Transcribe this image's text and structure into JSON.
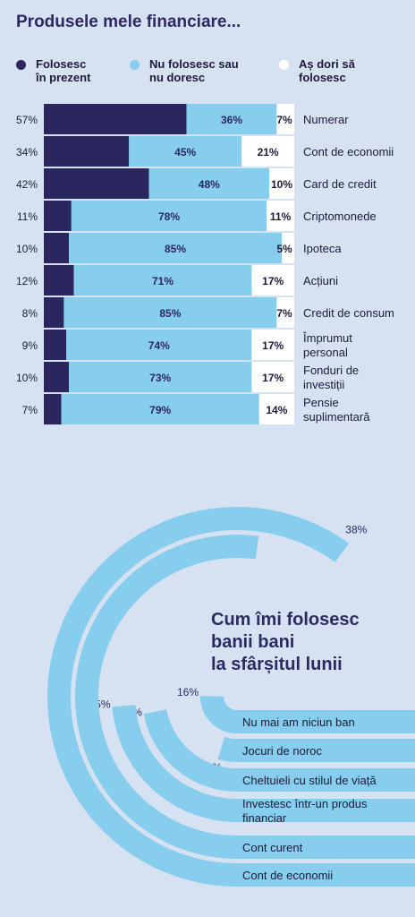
{
  "chart_data": [
    {
      "type": "bar",
      "title": "Produsele mele financiare...",
      "legend": [
        {
          "name": "Folosesc în prezent",
          "color": "#2b275e"
        },
        {
          "name": "Nu folosesc sau nu doresc",
          "color": "#87cded"
        },
        {
          "name": "Aș dori să folosesc",
          "color": "#ffffff"
        }
      ],
      "categories": [
        "Numerar",
        "Cont de economii",
        "Card de credit",
        "Criptomonede",
        "Ipoteca",
        "Acțiuni",
        "Credit de consum",
        "Împrumut personal",
        "Fonduri de investiții",
        "Pensie suplimentară"
      ],
      "series": [
        {
          "name": "Folosesc în prezent",
          "values": [
            57,
            34,
            42,
            11,
            10,
            12,
            8,
            9,
            10,
            7
          ]
        },
        {
          "name": "Nu folosesc sau nu doresc",
          "values": [
            36,
            45,
            48,
            78,
            85,
            71,
            85,
            74,
            73,
            79
          ]
        },
        {
          "name": "Aș dori să folosesc",
          "values": [
            7,
            21,
            10,
            11,
            5,
            17,
            7,
            17,
            17,
            14
          ]
        }
      ],
      "stacked": true,
      "value_suffix": "%"
    },
    {
      "type": "radial-bar",
      "title": "Cum îmi folosesc banii bani la sfârșitul lunii",
      "categories": [
        "Nu mai am niciun ban",
        "Jocuri de noroc",
        "Cheltuieli cu stilul de viață",
        "Investesc într-un produs financiar",
        "Cont curent",
        "Cont de economii"
      ],
      "values": [
        16,
        3,
        14,
        15,
        33,
        38
      ],
      "value_suffix": "%",
      "color": "#87cded"
    }
  ],
  "legend_text": [
    "Folosesc\nîn prezent",
    "Nu folosesc sau\nnu doresc",
    "Aș dori să\nfolosesc"
  ],
  "category_labels": [
    "Numerar",
    "Cont de economii",
    "Card de credit",
    "Criptomonede",
    "Ipoteca",
    "Acțiuni",
    "Credit de consum",
    "Împrumut\npersonal",
    "Fonduri de\ninvestiții",
    "Pensie\nsuplimentară"
  ],
  "radial_title_lines": [
    "Cum îmi folosesc",
    "banii bani",
    "la sfârșitul lunii"
  ],
  "radial_labels": [
    "Nu mai am niciun ban",
    "Jocuri de noroc",
    "Cheltuieli cu stilul de viață",
    "Investesc într-un produs\nfinanciar",
    "Cont curent",
    "Cont de economii"
  ]
}
